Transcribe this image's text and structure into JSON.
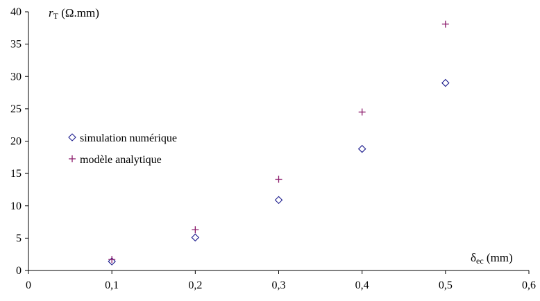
{
  "chart_data": {
    "type": "scatter",
    "title": "",
    "ylabel": {
      "italic": "r",
      "sub": "T",
      "rest": " (Ω.mm)"
    },
    "xlabel": {
      "main": "δ",
      "sub": "ec",
      "rest": " (mm)"
    },
    "xlim": [
      0,
      0.6
    ],
    "ylim": [
      0,
      40
    ],
    "x_ticks": [
      "0",
      "0,1",
      "0,2",
      "0,3",
      "0,4",
      "0,5",
      "0,6"
    ],
    "y_ticks": [
      "0",
      "5",
      "10",
      "15",
      "20",
      "25",
      "30",
      "35",
      "40"
    ],
    "grid": false,
    "legend_position": "left",
    "series": [
      {
        "name": "simulation numérique",
        "marker": "diamond",
        "color": "#1f1f8f",
        "x": [
          0.1,
          0.2,
          0.3,
          0.4,
          0.5
        ],
        "y": [
          1.4,
          5.1,
          10.9,
          18.8,
          29.0
        ]
      },
      {
        "name": "modèle analytique",
        "marker": "plus",
        "color": "#8b1a6b",
        "x": [
          0.1,
          0.2,
          0.3,
          0.4,
          0.5
        ],
        "y": [
          1.7,
          6.3,
          14.1,
          24.5,
          38.1
        ]
      }
    ]
  }
}
